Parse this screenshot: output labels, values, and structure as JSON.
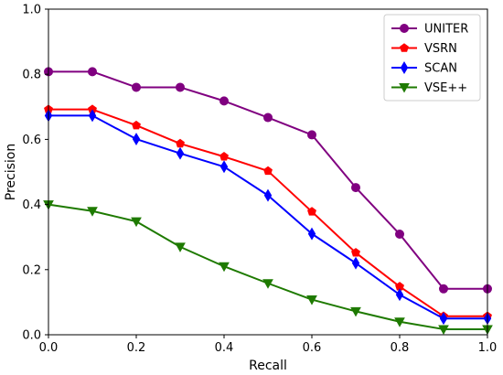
{
  "chart_data": {
    "type": "line",
    "title": "",
    "xlabel": "Recall",
    "ylabel": "Precision",
    "xlim": [
      0.0,
      1.0
    ],
    "ylim": [
      0.0,
      1.0
    ],
    "x_ticks": [
      "0.0",
      "0.2",
      "0.4",
      "0.6",
      "0.8",
      "1.0"
    ],
    "y_ticks": [
      "0.0",
      "0.2",
      "0.4",
      "0.6",
      "0.8",
      "1.0"
    ],
    "grid": false,
    "legend_position": "top-right",
    "x": [
      0.0,
      0.1,
      0.2,
      0.3,
      0.4,
      0.5,
      0.6,
      0.7,
      0.8,
      0.9,
      1.0
    ],
    "series": [
      {
        "name": "UNITER",
        "color": "#800080",
        "marker": "circle",
        "values": [
          0.808,
          0.808,
          0.76,
          0.76,
          0.718,
          0.667,
          0.614,
          0.452,
          0.309,
          0.141,
          0.141
        ]
      },
      {
        "name": "VSRN",
        "color": "#ff0000",
        "marker": "pentagon",
        "values": [
          0.692,
          0.692,
          0.643,
          0.587,
          0.547,
          0.503,
          0.378,
          0.252,
          0.148,
          0.057,
          0.057
        ]
      },
      {
        "name": "SCAN",
        "color": "#0000ff",
        "marker": "thin-diamond",
        "values": [
          0.673,
          0.673,
          0.601,
          0.557,
          0.516,
          0.428,
          0.31,
          0.22,
          0.123,
          0.05,
          0.05
        ]
      },
      {
        "name": "VSE++",
        "color": "#1e7a00",
        "marker": "triangle-down",
        "values": [
          0.4,
          0.38,
          0.348,
          0.27,
          0.21,
          0.158,
          0.108,
          0.072,
          0.04,
          0.017,
          0.017
        ]
      }
    ]
  }
}
